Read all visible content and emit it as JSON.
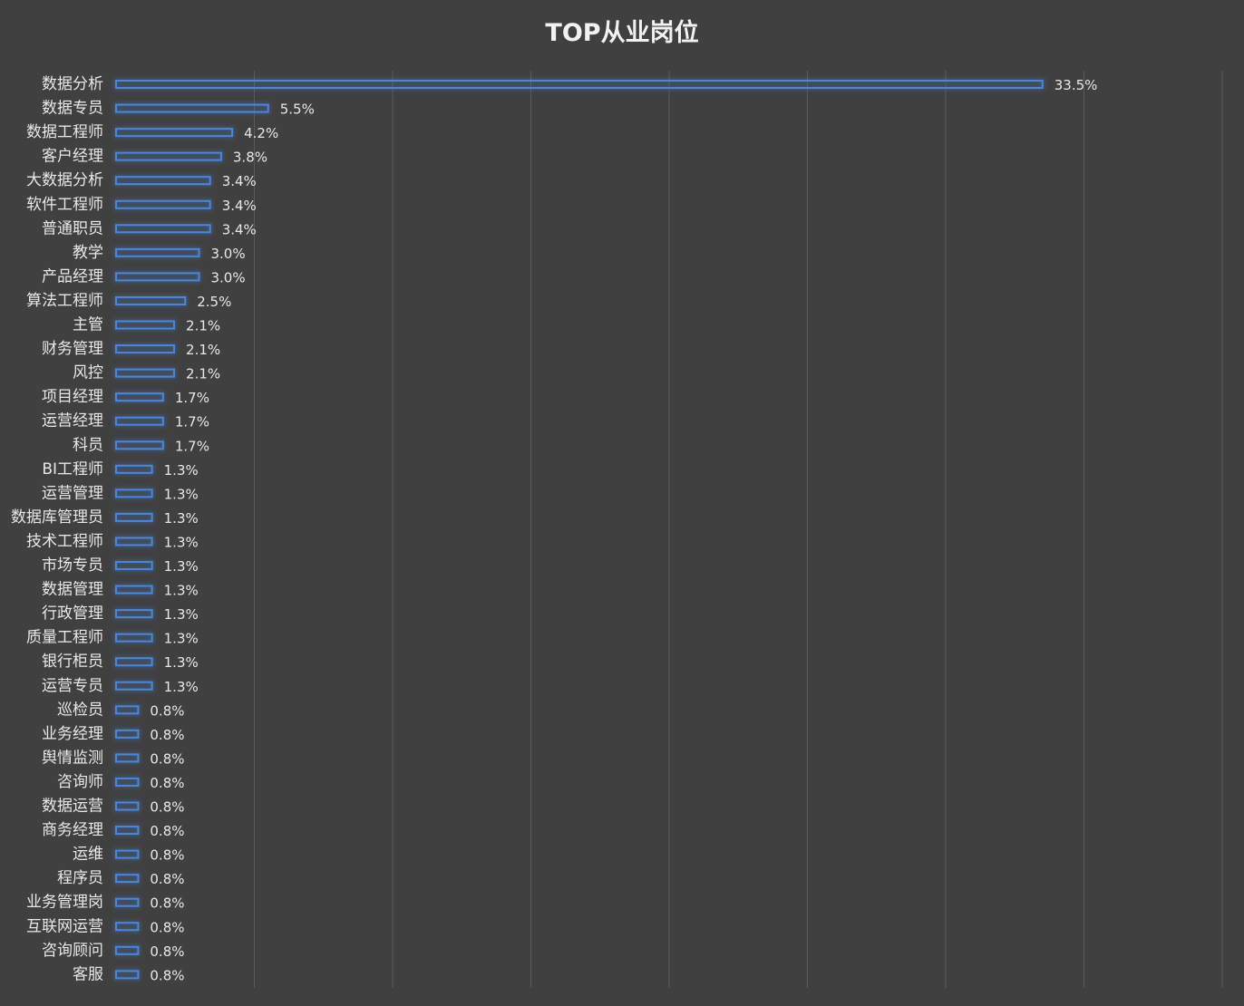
{
  "chart_data": {
    "type": "bar",
    "orientation": "horizontal",
    "title": "TOP从业岗位",
    "xlabel": "",
    "ylabel": "",
    "xlim": [
      0,
      40
    ],
    "grid": true,
    "bar_color": "#4d86d6",
    "background_color": "#404040",
    "categories": [
      "数据分析",
      "数据专员",
      "数据工程师",
      "客户经理",
      "大数据分析",
      "软件工程师",
      "普通职员",
      "教学",
      "产品经理",
      "算法工程师",
      "主管",
      "财务管理",
      "风控",
      "项目经理",
      "运营经理",
      "科员",
      "BI工程师",
      "运营管理",
      "数据库管理员",
      "技术工程师",
      "市场专员",
      "数据管理",
      "行政管理",
      "质量工程师",
      "银行柜员",
      "运营专员",
      "巡检员",
      "业务经理",
      "舆情监测",
      "咨询师",
      "数据运营",
      "商务经理",
      "运维",
      "程序员",
      "业务管理岗",
      "互联网运营",
      "咨询顾问",
      "客服"
    ],
    "values": [
      33.5,
      5.5,
      4.2,
      3.8,
      3.4,
      3.4,
      3.4,
      3.0,
      3.0,
      2.5,
      2.1,
      2.1,
      2.1,
      1.7,
      1.7,
      1.7,
      1.3,
      1.3,
      1.3,
      1.3,
      1.3,
      1.3,
      1.3,
      1.3,
      1.3,
      1.3,
      0.8,
      0.8,
      0.8,
      0.8,
      0.8,
      0.8,
      0.8,
      0.8,
      0.8,
      0.8,
      0.8,
      0.8
    ],
    "value_labels": [
      "33.5%",
      "5.5%",
      "4.2%",
      "3.8%",
      "3.4%",
      "3.4%",
      "3.4%",
      "3.0%",
      "3.0%",
      "2.5%",
      "2.1%",
      "2.1%",
      "2.1%",
      "1.7%",
      "1.7%",
      "1.7%",
      "1.3%",
      "1.3%",
      "1.3%",
      "1.3%",
      "1.3%",
      "1.3%",
      "1.3%",
      "1.3%",
      "1.3%",
      "1.3%",
      "0.8%",
      "0.8%",
      "0.8%",
      "0.8%",
      "0.8%",
      "0.8%",
      "0.8%",
      "0.8%",
      "0.8%",
      "0.8%",
      "0.8%",
      "0.8%"
    ]
  }
}
